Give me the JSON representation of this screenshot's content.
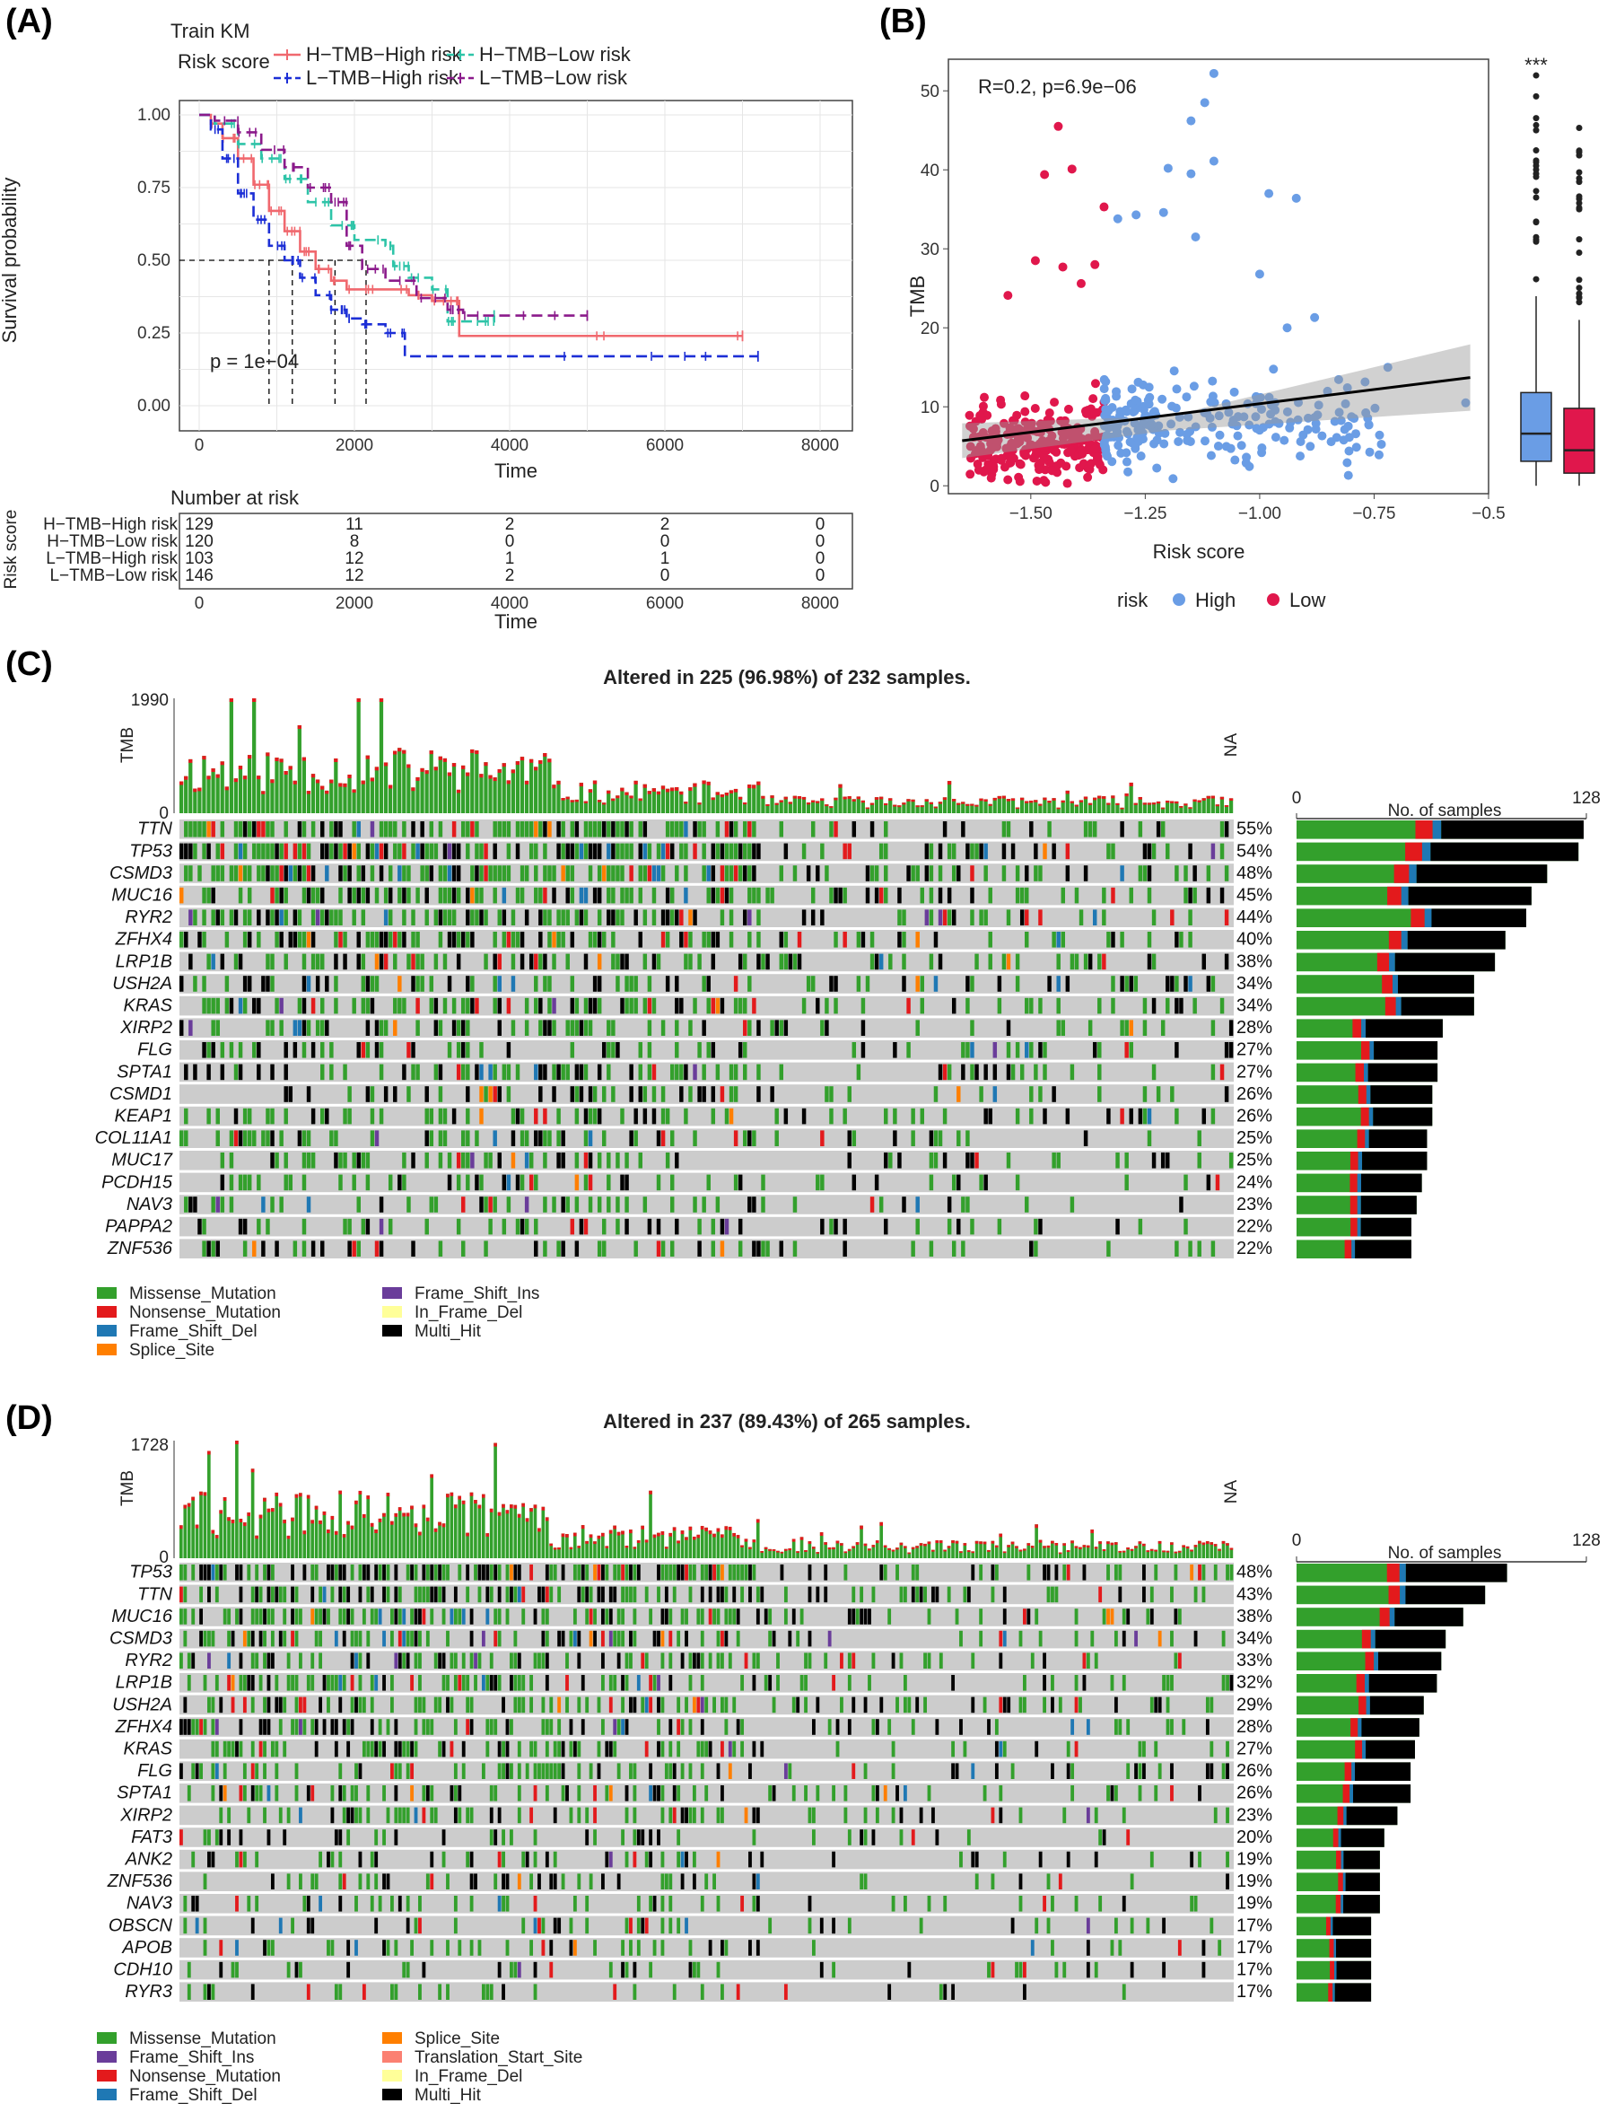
{
  "colors": {
    "missense": "#33A02C",
    "nonsense": "#E31A1C",
    "frame_shift_del": "#1F78B4",
    "splice_site": "#FF7F00",
    "frame_shift_ins": "#6A3D9A",
    "in_frame_del": "#FFFF99",
    "multi_hit": "#000000",
    "translation_start_site": "#FB8072",
    "cell_bg": "#CCCCCC",
    "high_risk_blue": "#6A9DE5",
    "low_risk_red": "#E0174C",
    "km_h_high": "#F0686E",
    "km_h_low": "#2EC4A8",
    "km_l_high": "#1C2FD6",
    "km_l_low": "#8B1A8B"
  },
  "panels": {
    "a": "(A)",
    "b": "(B)",
    "c": "(C)",
    "d": "(D)"
  },
  "chart_data": [
    {
      "type": "line",
      "id": "km",
      "title": "Train KM",
      "legend_title": "Risk score",
      "xlabel": "Time",
      "ylabel": "Survival probability",
      "xlim": [
        0,
        8000
      ],
      "ylim": [
        0,
        1
      ],
      "xticks": [
        "0",
        "2000",
        "4000",
        "6000",
        "8000"
      ],
      "yticks": [
        "0.00",
        "0.25",
        "0.50",
        "0.75",
        "1.00"
      ],
      "pvalue": "p = 1e−04",
      "series": [
        {
          "name": "H−TMB−High risk",
          "color_key": "km_h_high",
          "dash": false,
          "points": [
            [
              0,
              1
            ],
            [
              150,
              0.97
            ],
            [
              300,
              0.92
            ],
            [
              500,
              0.85
            ],
            [
              700,
              0.76
            ],
            [
              900,
              0.67
            ],
            [
              1100,
              0.6
            ],
            [
              1300,
              0.53
            ],
            [
              1500,
              0.47
            ],
            [
              1700,
              0.43
            ],
            [
              1900,
              0.4
            ],
            [
              2200,
              0.4
            ],
            [
              2700,
              0.38
            ],
            [
              3000,
              0.36
            ],
            [
              3300,
              0.36
            ],
            [
              3350,
              0.24
            ],
            [
              7000,
              0.24
            ]
          ]
        },
        {
          "name": "H−TMB−Low risk",
          "color_key": "km_h_low",
          "dash": true,
          "points": [
            [
              0,
              1
            ],
            [
              200,
              0.97
            ],
            [
              500,
              0.9
            ],
            [
              800,
              0.85
            ],
            [
              1100,
              0.78
            ],
            [
              1400,
              0.7
            ],
            [
              1700,
              0.62
            ],
            [
              2000,
              0.57
            ],
            [
              2400,
              0.55
            ],
            [
              2500,
              0.48
            ],
            [
              2700,
              0.44
            ],
            [
              3000,
              0.4
            ],
            [
              3200,
              0.29
            ],
            [
              3600,
              0.29
            ],
            [
              3800,
              0.31
            ]
          ]
        },
        {
          "name": "L−TMB−High risk",
          "color_key": "km_l_high",
          "dash": true,
          "points": [
            [
              0,
              1
            ],
            [
              150,
              0.95
            ],
            [
              300,
              0.85
            ],
            [
              500,
              0.73
            ],
            [
              700,
              0.64
            ],
            [
              900,
              0.55
            ],
            [
              1100,
              0.5
            ],
            [
              1300,
              0.44
            ],
            [
              1500,
              0.38
            ],
            [
              1700,
              0.33
            ],
            [
              1900,
              0.3
            ],
            [
              2100,
              0.28
            ],
            [
              2400,
              0.25
            ],
            [
              2650,
              0.17
            ],
            [
              7200,
              0.17
            ]
          ]
        },
        {
          "name": "L−TMB−Low risk",
          "color_key": "km_l_low",
          "dash": true,
          "points": [
            [
              0,
              1
            ],
            [
              200,
              0.98
            ],
            [
              500,
              0.94
            ],
            [
              800,
              0.88
            ],
            [
              1100,
              0.82
            ],
            [
              1400,
              0.75
            ],
            [
              1700,
              0.7
            ],
            [
              1900,
              0.55
            ],
            [
              2100,
              0.47
            ],
            [
              2400,
              0.43
            ],
            [
              2800,
              0.37
            ],
            [
              3200,
              0.33
            ],
            [
              3400,
              0.31
            ],
            [
              5000,
              0.31
            ]
          ]
        }
      ],
      "median_times": [
        900,
        1200,
        1750,
        2150
      ],
      "risk_table": {
        "title": "Number at risk",
        "row_label": "Risk score",
        "xlabel": "Time",
        "rows": [
          {
            "name": "H−TMB−High risk",
            "color_key": "km_h_high",
            "values": [
              "129",
              "11",
              "2",
              "2",
              "0"
            ]
          },
          {
            "name": "H−TMB−Low risk",
            "color_key": "km_h_low",
            "values": [
              "120",
              "8",
              "0",
              "0",
              "0"
            ]
          },
          {
            "name": "L−TMB−High risk",
            "color_key": "km_l_high",
            "values": [
              "103",
              "12",
              "1",
              "1",
              "0"
            ]
          },
          {
            "name": "L−TMB−Low risk",
            "color_key": "km_l_low",
            "values": [
              "146",
              "12",
              "2",
              "0",
              "0"
            ]
          }
        ]
      }
    },
    {
      "type": "scatter",
      "id": "tmb_scatter",
      "annotation": "R=0.2, p=6.9e−06",
      "xlabel": "Risk score",
      "ylabel": "TMB",
      "xlim": [
        -1.68,
        -0.5
      ],
      "ylim": [
        -1,
        54
      ],
      "xticks": [
        "−1.50",
        "−1.25",
        "−1.00",
        "−0.75",
        "−0.5"
      ],
      "xtick_values": [
        -1.5,
        -1.25,
        -1.0,
        -0.75,
        -0.5
      ],
      "yticks": [
        "0",
        "10",
        "20",
        "30",
        "40",
        "50"
      ],
      "threshold": -1.34,
      "fit": {
        "x0": -1.65,
        "y0": 5.7,
        "x1": -0.54,
        "y1": 13.7
      },
      "outliers_high": [
        [
          -1.1,
          52.2
        ],
        [
          -1.12,
          48.5
        ],
        [
          -1.15,
          46.2
        ],
        [
          -1.1,
          41.1
        ],
        [
          -1.2,
          40.2
        ],
        [
          -1.15,
          39.5
        ],
        [
          -0.98,
          37.0
        ],
        [
          -1.27,
          34.3
        ],
        [
          -1.21,
          34.6
        ],
        [
          -0.92,
          36.4
        ],
        [
          -1.31,
          33.8
        ],
        [
          -1.14,
          31.5
        ],
        [
          -1.0,
          26.8
        ],
        [
          -0.55,
          10.5
        ],
        [
          -0.72,
          15.0
        ],
        [
          -0.88,
          21.3
        ],
        [
          -0.94,
          20.0
        ]
      ],
      "outliers_low": [
        [
          -1.44,
          45.5
        ],
        [
          -1.47,
          39.4
        ],
        [
          -1.41,
          40.1
        ],
        [
          -1.34,
          35.3
        ],
        [
          -1.49,
          28.5
        ],
        [
          -1.43,
          27.7
        ],
        [
          -1.36,
          28.0
        ],
        [
          -1.55,
          24.1
        ],
        [
          -1.39,
          25.6
        ]
      ],
      "box": {
        "high": {
          "q1": 3.1,
          "median": 6.6,
          "q3": 11.8,
          "lo": 0.0,
          "hi": 24.0
        },
        "low": {
          "q1": 1.6,
          "median": 4.5,
          "q3": 9.8,
          "lo": 0.0,
          "hi": 21.0
        },
        "sig": "***"
      },
      "legend_title": "risk",
      "legend": [
        "High",
        "Low"
      ]
    },
    {
      "type": "heatmap",
      "id": "oncoplot_c",
      "title": "Altered in 225 (96.98%) of 232 samples.",
      "tmb_label": "TMB",
      "tmb_max": "1990",
      "tmb_min": "0",
      "na_label": "NA",
      "side_axis": [
        "0",
        "128"
      ],
      "side_title": "No. of samples",
      "genes": [
        "TTN",
        "TP53",
        "CSMD3",
        "MUC16",
        "RYR2",
        "ZFHX4",
        "LRP1B",
        "USH2A",
        "KRAS",
        "XIRP2",
        "FLG",
        "SPTA1",
        "CSMD1",
        "KEAP1",
        "COL11A1",
        "MUC17",
        "PCDH15",
        "NAV3",
        "PAPPA2",
        "ZNF536"
      ],
      "percents": [
        "55%",
        "54%",
        "48%",
        "45%",
        "44%",
        "40%",
        "38%",
        "34%",
        "34%",
        "28%",
        "27%",
        "27%",
        "26%",
        "26%",
        "25%",
        "25%",
        "24%",
        "23%",
        "22%",
        "22%"
      ],
      "legend": [
        "Missense_Mutation",
        "Nonsense_Mutation",
        "Frame_Shift_Del",
        "Splice_Site",
        "Frame_Shift_Ins",
        "In_Frame_Del",
        "Multi_Hit"
      ]
    },
    {
      "type": "heatmap",
      "id": "oncoplot_d",
      "title": "Altered in 237 (89.43%) of 265 samples.",
      "tmb_label": "TMB",
      "tmb_max": "1728",
      "tmb_min": "0",
      "na_label": "NA",
      "side_axis": [
        "0",
        "128"
      ],
      "side_title": "No. of samples",
      "genes": [
        "TP53",
        "TTN",
        "MUC16",
        "CSMD3",
        "RYR2",
        "LRP1B",
        "USH2A",
        "ZFHX4",
        "KRAS",
        "FLG",
        "SPTA1",
        "XIRP2",
        "FAT3",
        "ANK2",
        "ZNF536",
        "NAV3",
        "OBSCN",
        "APOB",
        "CDH10",
        "RYR3"
      ],
      "percents": [
        "48%",
        "43%",
        "38%",
        "34%",
        "33%",
        "32%",
        "29%",
        "28%",
        "27%",
        "26%",
        "26%",
        "23%",
        "20%",
        "19%",
        "19%",
        "19%",
        "17%",
        "17%",
        "17%",
        "17%"
      ],
      "legend": [
        "Missense_Mutation",
        "Frame_Shift_Ins",
        "Nonsense_Mutation",
        "Frame_Shift_Del",
        "Splice_Site",
        "Translation_Start_Site",
        "In_Frame_Del",
        "Multi_Hit"
      ]
    }
  ]
}
